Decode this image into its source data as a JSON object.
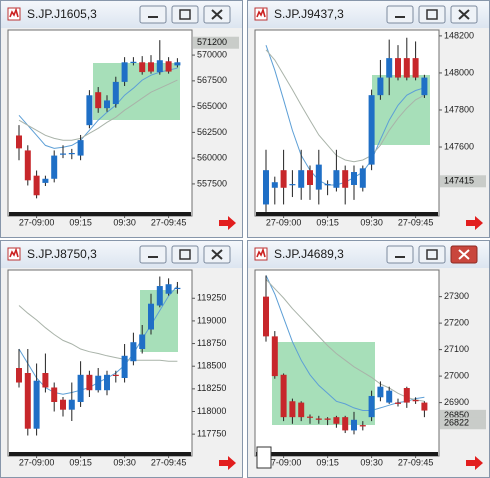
{
  "chart_data": [
    {
      "type": "candlestick",
      "title": "S.JP.J1605,3",
      "categories": [
        null,
        null,
        "27-09:00",
        null,
        null,
        null,
        null,
        "09:15",
        null,
        null,
        null,
        null,
        "09:30",
        null,
        null,
        null,
        null,
        "27-09:45",
        null
      ],
      "open": [
        562200,
        560750,
        558300,
        557600,
        558000,
        560400,
        560400,
        560250,
        563200,
        566400,
        564850,
        565250,
        567400,
        569300,
        569300,
        569300,
        568350,
        569400,
        569000
      ],
      "high": [
        563200,
        561250,
        558800,
        558300,
        560750,
        561250,
        560900,
        562250,
        566600,
        566900,
        566100,
        567900,
        569800,
        569800,
        569900,
        570000,
        571450,
        569800,
        569700
      ],
      "low": [
        559800,
        557350,
        556100,
        557300,
        557650,
        560000,
        559900,
        559800,
        562900,
        564400,
        564500,
        564900,
        567000,
        569000,
        568100,
        568200,
        568100,
        568200,
        568800
      ],
      "close": [
        560950,
        557850,
        556400,
        558000,
        560250,
        560450,
        560500,
        561750,
        566100,
        564850,
        565600,
        567400,
        569300,
        569350,
        568350,
        568400,
        569500,
        568400,
        569300
      ],
      "lines": [
        {
          "color": "#5d9fd6",
          "values": [
            564160,
            563190,
            562220,
            561240,
            560950,
            561050,
            561240,
            561730,
            562700,
            563680,
            564450,
            565140,
            566110,
            566790,
            567570,
            568050,
            568350,
            568540,
            568740
          ]
        },
        {
          "color": "#a9b3a9",
          "values": [
            563680,
            563190,
            562700,
            562220,
            561920,
            561730,
            561730,
            561920,
            562410,
            562900,
            563480,
            563970,
            564650,
            565230,
            565820,
            566400,
            566790,
            567180,
            567570
          ]
        }
      ],
      "up_color": "#1f6fc6",
      "down_color": "#c7272b",
      "ylim": [
        554970,
        572240
      ],
      "yticks": [
        557500,
        560000,
        562500,
        565000,
        567500,
        570000
      ],
      "price_tags": [
        571200
      ]
    },
    {
      "type": "candlestick",
      "title": "S.JP.J9437,3",
      "categories": [
        null,
        null,
        "27-09:00",
        null,
        null,
        null,
        null,
        "09:15",
        null,
        null,
        null,
        null,
        "09:30",
        null,
        null,
        null,
        null,
        "27-09:45",
        null
      ],
      "open": [
        147290,
        147380,
        147475,
        147395,
        147380,
        147475,
        147370,
        147395,
        147380,
        147475,
        147395,
        147380,
        147505,
        147880,
        147975,
        148080,
        148080,
        148080,
        147880
      ],
      "high": [
        147585,
        147440,
        147585,
        147475,
        147585,
        147500,
        147585,
        147420,
        147585,
        147500,
        147500,
        147500,
        147910,
        148070,
        148180,
        148150,
        148190,
        148170,
        147990
      ],
      "low": [
        147250,
        147290,
        147290,
        147330,
        147315,
        147315,
        147290,
        147340,
        147360,
        147290,
        147315,
        147360,
        147475,
        147855,
        147880,
        147960,
        147960,
        147960,
        147865
      ],
      "close": [
        147475,
        147410,
        147380,
        147400,
        147475,
        147395,
        147505,
        147400,
        147475,
        147380,
        147465,
        147485,
        147880,
        147975,
        148080,
        147975,
        147975,
        147975,
        147975
      ],
      "lines": [
        {
          "color": "#5d9fd6",
          "values": [
            148150,
            148015,
            147855,
            147690,
            147555,
            147475,
            147420,
            147395,
            147395,
            147410,
            147435,
            147465,
            147530,
            147640,
            147745,
            147825,
            147880,
            147905,
            147920
          ]
        },
        {
          "color": "#a9b3a9",
          "values": [
            148125,
            148070,
            147990,
            147910,
            147825,
            147745,
            147665,
            147610,
            147555,
            147530,
            147520,
            147530,
            147555,
            147610,
            147690,
            147755,
            147810,
            147855,
            147880
          ]
        }
      ],
      "up_color": "#1f6fc6",
      "down_color": "#c7272b",
      "ylim": [
        147260,
        148221
      ],
      "yticks": [
        147600,
        147800,
        148000,
        148200
      ],
      "price_tags": [
        147415
      ]
    },
    {
      "type": "candlestick",
      "title": "S.JP.J8750,3",
      "categories": [
        null,
        null,
        "27-09:00",
        null,
        null,
        null,
        null,
        "09:15",
        null,
        null,
        null,
        null,
        "09:30",
        null,
        null,
        null,
        null,
        "27-09:45",
        null
      ],
      "open": [
        118480,
        118425,
        117810,
        118425,
        118265,
        118130,
        118020,
        118105,
        118405,
        118235,
        118235,
        118405,
        118370,
        118555,
        118690,
        118905,
        119170,
        119300,
        119360
      ],
      "high": [
        118690,
        118690,
        118530,
        118640,
        118320,
        118160,
        118320,
        118555,
        118450,
        118480,
        118450,
        118450,
        118745,
        118870,
        118955,
        119300,
        119490,
        119470,
        119430
      ],
      "low": [
        118265,
        117735,
        117735,
        118210,
        118000,
        117945,
        117895,
        118050,
        118160,
        118210,
        118180,
        118320,
        118320,
        118510,
        118640,
        118850,
        119150,
        119280,
        119300
      ],
      "close": [
        118320,
        117810,
        118340,
        118265,
        118105,
        118020,
        118130,
        118405,
        118235,
        118395,
        118405,
        118400,
        118615,
        118765,
        118850,
        119190,
        119385,
        119405,
        119365
      ],
      "lines": [
        {
          "color": "#5d9fd6",
          "values": [
            118690,
            118530,
            118370,
            118265,
            118210,
            118190,
            118210,
            118235,
            118265,
            118320,
            118370,
            118425,
            118510,
            118640,
            118800,
            118955,
            119115,
            119275,
            119385
          ]
        },
        {
          "color": "#a9b3a9",
          "values": [
            119170,
            119085,
            119010,
            118925,
            118850,
            118785,
            118745,
            118690,
            118660,
            118640,
            118615,
            118595,
            118575,
            118565,
            118565,
            118565,
            118565,
            118555,
            118555
          ]
        }
      ],
      "up_color": "#1f6fc6",
      "down_color": "#c7272b",
      "ylim": [
        117575,
        119540
      ],
      "yticks": [
        117750,
        118000,
        118250,
        118500,
        118750,
        119000,
        119250
      ],
      "price_tags": []
    },
    {
      "type": "candlestick",
      "title": "S.JP.J4689,3",
      "categories": [
        null,
        null,
        "27-09:00",
        null,
        null,
        null,
        null,
        "09:15",
        null,
        null,
        null,
        null,
        "09:30",
        null,
        null,
        null,
        null,
        "27-09:45",
        null
      ],
      "open": [
        27300,
        27150,
        27005,
        26905,
        26900,
        26847,
        26840,
        26840,
        26845,
        26845,
        26795,
        26815,
        26845,
        26920,
        26900,
        26900,
        26955,
        26910,
        26900
      ],
      "high": [
        27380,
        27170,
        27010,
        26915,
        26905,
        26855,
        26850,
        26845,
        26850,
        26850,
        26865,
        26830,
        26945,
        26980,
        26960,
        26915,
        26960,
        26920,
        26905
      ],
      "low": [
        27130,
        26990,
        26830,
        26820,
        26830,
        26820,
        26820,
        26815,
        26805,
        26785,
        26780,
        26795,
        26830,
        26905,
        26895,
        26885,
        26880,
        26895,
        26845
      ],
      "close": [
        27150,
        27000,
        26845,
        26845,
        26845,
        26843,
        26835,
        26835,
        26820,
        26795,
        26835,
        26810,
        26925,
        26960,
        26945,
        26895,
        26900,
        26905,
        26870
      ],
      "lines": [
        {
          "color": "#5d9fd6",
          "values": [
            27380,
            27310,
            27220,
            27130,
            27060,
            27005,
            26965,
            26935,
            26905,
            26895,
            26880,
            26870,
            26870,
            26880,
            26890,
            26900,
            26905,
            26915,
            26920
          ]
        },
        {
          "color": "#a9b3a9",
          "values": [
            27365,
            27330,
            27295,
            27255,
            27220,
            27185,
            27150,
            27115,
            27085,
            27060,
            27035,
            27015,
            26995,
            26970,
            26955,
            26935,
            26920,
            26910,
            26905
          ]
        }
      ],
      "up_color": "#1f6fc6",
      "down_color": "#c7272b",
      "ylim": [
        26721,
        27393
      ],
      "yticks": [
        26900,
        27000,
        27100,
        27200,
        27300
      ],
      "price_tags": [
        26850,
        26822
      ]
    }
  ]
}
